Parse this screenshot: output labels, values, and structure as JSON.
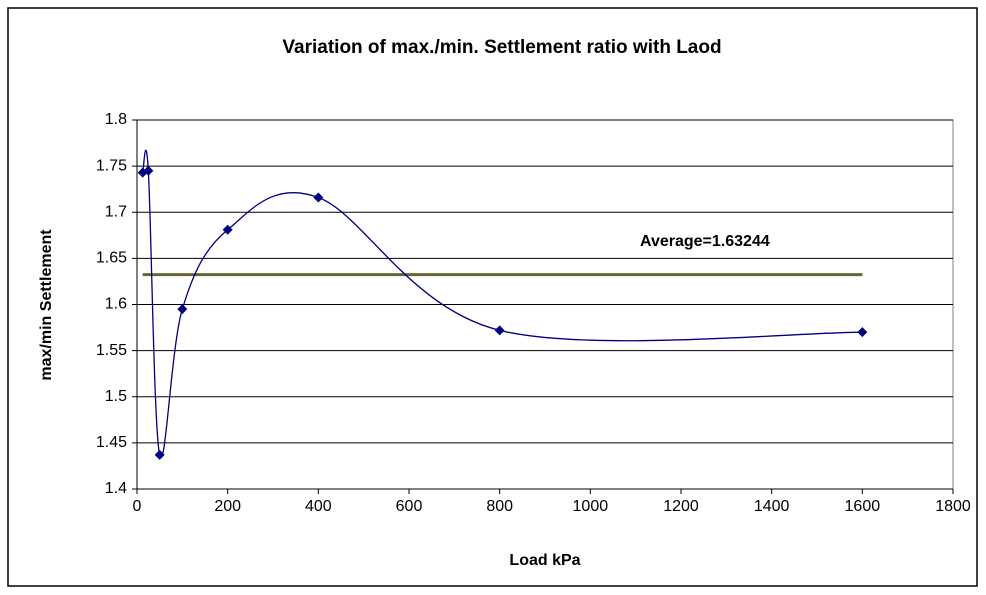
{
  "chart_data": {
    "type": "line",
    "title": "Variation of max./min. Settlement ratio with Laod",
    "xlabel": "Load kPa",
    "ylabel": "max/min Settlement",
    "x": [
      12.5,
      25,
      50,
      100,
      200,
      400,
      800,
      1600
    ],
    "series": [
      {
        "color": "#000080",
        "values": [
          1.743,
          1.745,
          1.437,
          1.595,
          1.681,
          1.716,
          1.572,
          1.57
        ]
      }
    ],
    "average": {
      "value": 1.63244,
      "label": "Average=1.63244",
      "color": "#666633"
    },
    "xlim": [
      0,
      1800
    ],
    "xticks": [
      0,
      200,
      400,
      600,
      800,
      1000,
      1200,
      1400,
      1600,
      1800
    ],
    "ylim": [
      1.4,
      1.8
    ],
    "yticks": [
      1.4,
      1.45,
      1.5,
      1.55,
      1.6,
      1.65,
      1.7,
      1.75,
      1.8
    ],
    "grid": true
  }
}
